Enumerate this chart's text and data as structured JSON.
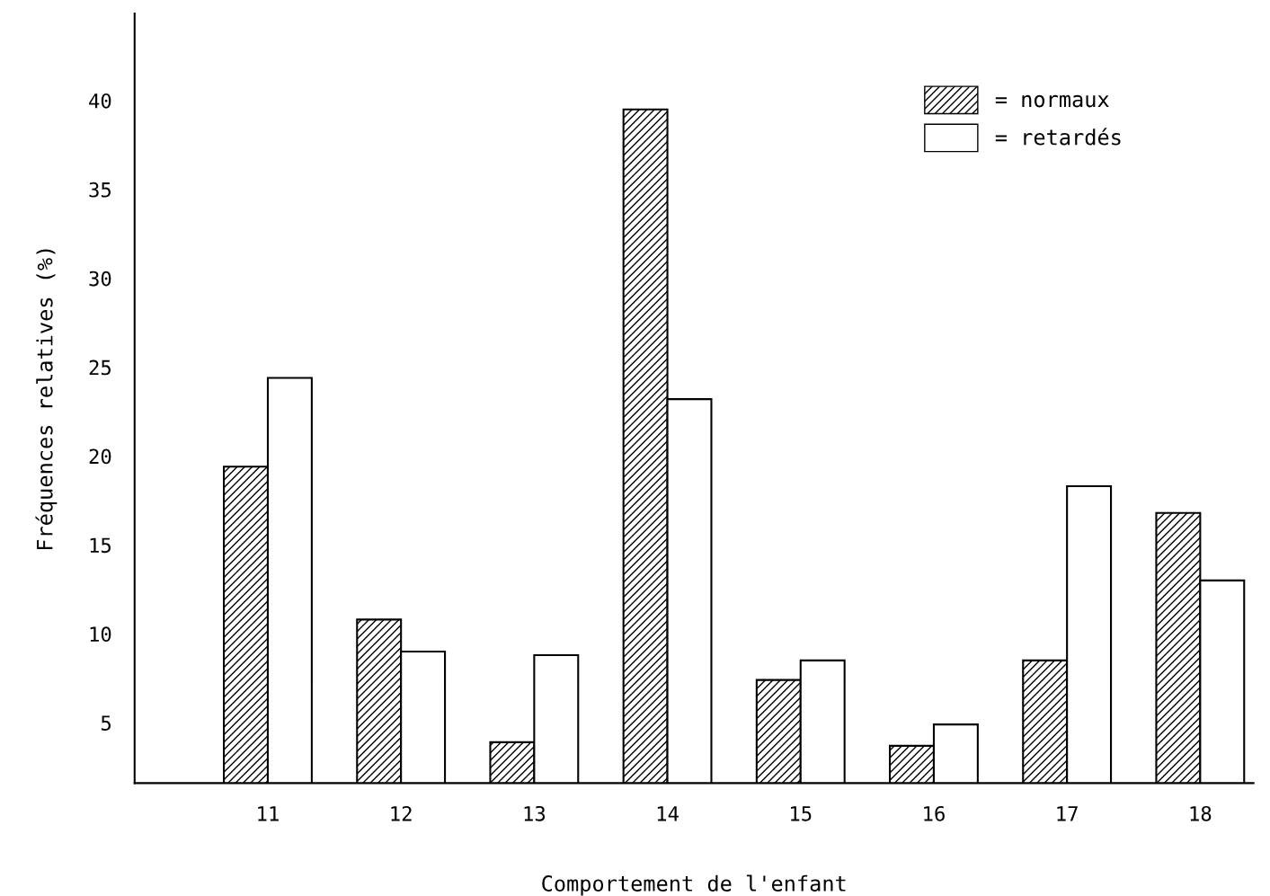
{
  "chart_data": {
    "type": "bar",
    "xlabel": "Comportement de l'enfant",
    "ylabel": "Fréquences relatives (%)",
    "categories": [
      "11",
      "12",
      "13",
      "14",
      "15",
      "16",
      "17",
      "18"
    ],
    "series": [
      {
        "name": "= normaux",
        "color": "#000000",
        "values": [
          19.4,
          10.8,
          3.9,
          39.5,
          7.4,
          3.7,
          8.5,
          16.8
        ]
      },
      {
        "name": "= retardés",
        "color": "#ffffff",
        "values": [
          24.4,
          9.0,
          8.8,
          23.2,
          8.5,
          4.9,
          18.3,
          13.0
        ]
      }
    ],
    "ylim": [
      1.6,
      44.9
    ],
    "yticks": [
      5,
      10,
      15,
      20,
      25,
      30,
      35,
      40
    ],
    "grid": false,
    "legend": "top right"
  }
}
